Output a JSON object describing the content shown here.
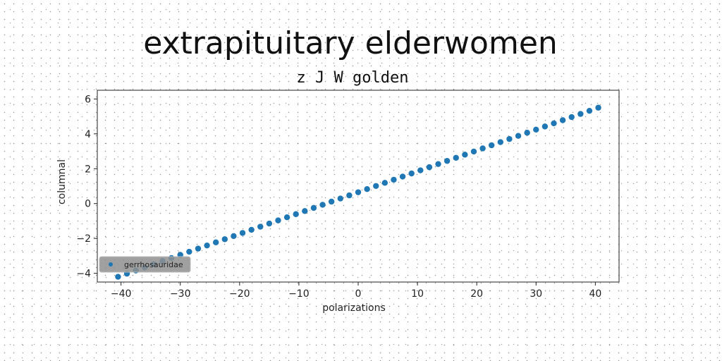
{
  "chart_data": {
    "type": "scatter",
    "title": "extrapituitary elderwomen",
    "subtitle": "z J W golden",
    "xlabel": "polarizations",
    "ylabel": "columnal",
    "xlim": [
      -44,
      44
    ],
    "ylim": [
      -4.5,
      6.5
    ],
    "xticks": [
      -40,
      -30,
      -20,
      -10,
      0,
      10,
      20,
      30,
      40
    ],
    "yticks": [
      -4,
      -2,
      0,
      2,
      4,
      6
    ],
    "grid": false,
    "legend": {
      "placement": "lower-left"
    },
    "series": [
      {
        "name": "gerrhosauridae",
        "color": "#1f77b4",
        "x_start": -40.5,
        "x_end": 40.5,
        "count": 55,
        "y_start": -4.2,
        "y_end": 5.5
      }
    ]
  }
}
